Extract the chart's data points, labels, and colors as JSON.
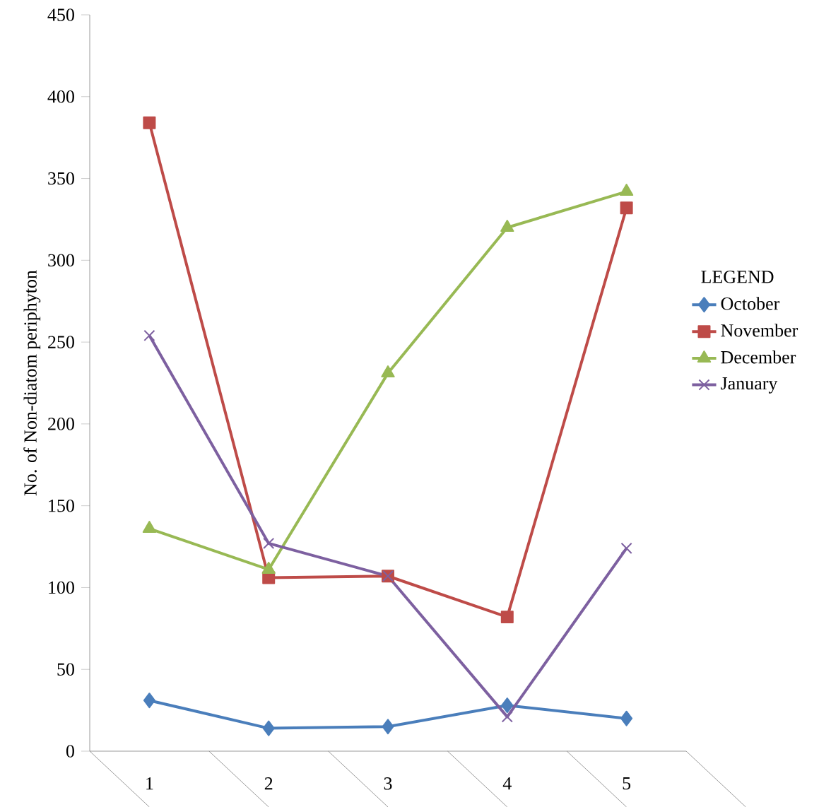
{
  "chart_data": {
    "type": "line",
    "ylabel": "No. of Non-diatom periphyton",
    "legend_title": "LEGEND",
    "categories": [
      "1",
      "2",
      "3",
      "4",
      "5"
    ],
    "series": [
      {
        "name": "October",
        "color": "#4a7ebb",
        "marker": "diamond",
        "values": [
          31,
          14,
          15,
          28,
          20
        ]
      },
      {
        "name": "November",
        "color": "#be4b48",
        "marker": "square",
        "values": [
          384,
          106,
          107,
          82,
          332
        ]
      },
      {
        "name": "December",
        "color": "#98b954",
        "marker": "triangle",
        "values": [
          136,
          111,
          231,
          320,
          342
        ]
      },
      {
        "name": "January",
        "color": "#7d60a0",
        "marker": "cross",
        "values": [
          254,
          127,
          107,
          21,
          124
        ]
      }
    ],
    "ylim": [
      0,
      450
    ],
    "yticks": [
      0,
      50,
      100,
      150,
      200,
      250,
      300,
      350,
      400,
      450
    ],
    "grid": false,
    "legend": "right",
    "line_style": "solid"
  }
}
